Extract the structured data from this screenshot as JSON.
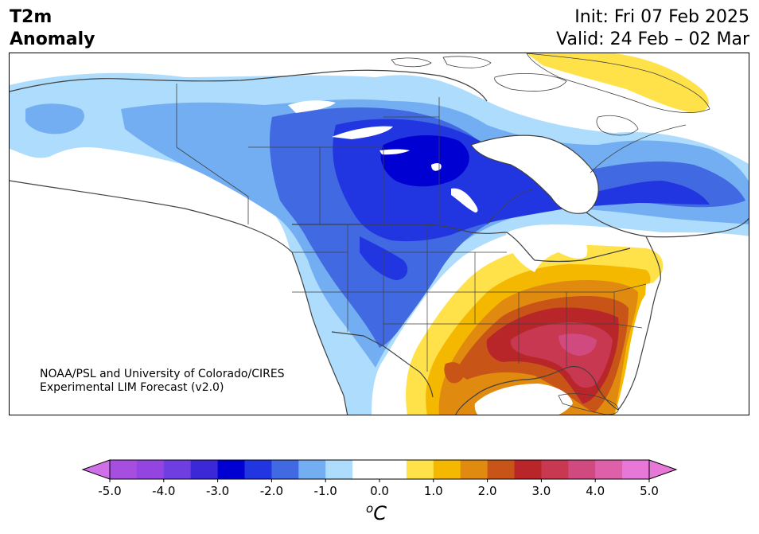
{
  "title": {
    "variable_line1": "T2m",
    "variable_line2": "Anomaly",
    "init_text": "Init: Fri 07 Feb 2025",
    "valid_text": "Valid: 24 Feb – 02 Mar"
  },
  "credit": {
    "line1": "NOAA/PSL and University of Colorado/CIRES",
    "line2": "Experimental LIM Forecast (v2.0)"
  },
  "colorbar": {
    "unit_superscript": "o",
    "unit_letter": "C",
    "min": -5.0,
    "max": 5.0,
    "ticks": [
      "-5.0",
      "-4.0",
      "-3.0",
      "-2.0",
      "-1.0",
      "0.0",
      "1.0",
      "2.0",
      "3.0",
      "4.0",
      "5.0"
    ],
    "bins": [
      {
        "from": -5.0,
        "to": -4.5,
        "color": "#a64ee0"
      },
      {
        "from": -4.5,
        "to": -4.0,
        "color": "#9444e0"
      },
      {
        "from": -4.0,
        "to": -3.5,
        "color": "#6f3ee0"
      },
      {
        "from": -3.5,
        "to": -3.0,
        "color": "#3d28d8"
      },
      {
        "from": -3.0,
        "to": -2.5,
        "color": "#0000d2"
      },
      {
        "from": -2.5,
        "to": -2.0,
        "color": "#2136e0"
      },
      {
        "from": -2.0,
        "to": -1.5,
        "color": "#4169e1"
      },
      {
        "from": -1.5,
        "to": -1.0,
        "color": "#73aef2"
      },
      {
        "from": -1.0,
        "to": -0.5,
        "color": "#aedcfc"
      },
      {
        "from": -0.5,
        "to": 0.0,
        "color": "#ffffff"
      },
      {
        "from": 0.0,
        "to": 0.5,
        "color": "#ffffff"
      },
      {
        "from": 0.5,
        "to": 1.0,
        "color": "#ffe24a"
      },
      {
        "from": 1.0,
        "to": 1.5,
        "color": "#f5b800"
      },
      {
        "from": 1.5,
        "to": 2.0,
        "color": "#e08a10"
      },
      {
        "from": 2.0,
        "to": 2.5,
        "color": "#c85418"
      },
      {
        "from": 2.5,
        "to": 3.0,
        "color": "#b8262a"
      },
      {
        "from": 3.0,
        "to": 3.5,
        "color": "#c83850"
      },
      {
        "from": 3.5,
        "to": 4.0,
        "color": "#d04a80"
      },
      {
        "from": 4.0,
        "to": 4.5,
        "color": "#de60a8"
      },
      {
        "from": 4.5,
        "to": 5.0,
        "color": "#e878d8"
      }
    ],
    "under_color": "#d070e8",
    "over_color": "#e878d8"
  },
  "map_colors": {
    "background": "#ffffff",
    "anom_m1": "#aedcfc",
    "anom_m15": "#73aef2",
    "anom_m2": "#4169e1",
    "anom_m25": "#2136e0",
    "anom_m3": "#0000d2",
    "anom_p1": "#ffe24a",
    "anom_p15": "#f5b800",
    "anom_p2": "#e08a10",
    "anom_p25": "#c85418",
    "anom_p3": "#b8262a",
    "anom_p35": "#c83850",
    "anom_p4": "#d04a80",
    "border": "#404040"
  }
}
